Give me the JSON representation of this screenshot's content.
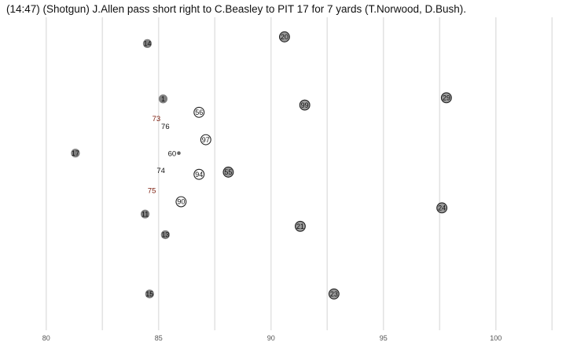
{
  "title": "(14:47) (Shotgun) J.Allen pass short right to C.Beasley to PIT 17 for 7 yards (T.Norwood, D.Bush).",
  "chart_data": {
    "type": "scatter",
    "title": "(14:47) (Shotgun) J.Allen pass short right to C.Beasley to PIT 17 for 7 yards (T.Norwood, D.Bush).",
    "xlabel": "",
    "ylabel": "",
    "xlim": [
      79.1,
      102.7
    ],
    "ylim": [
      -2.6,
      53.4
    ],
    "x_ticks": [
      80,
      85,
      90,
      95,
      100
    ],
    "gridlines_at": [
      80,
      82.5,
      85,
      87.5,
      90,
      92.5,
      95,
      97.5,
      100,
      102.5
    ],
    "legend": "none",
    "colors": {
      "offense_marker": "#808080",
      "defense_marker": "#9a9a9a",
      "defense_stroke": "#222222",
      "lineman_label": "#7a1a0a",
      "ball": "#666666",
      "highlight_marker": "#ffffff"
    },
    "series": [
      {
        "role": "offense",
        "points": [
          {
            "label": "14",
            "x": 84.5,
            "y": 48.7
          },
          {
            "label": "1",
            "x": 85.2,
            "y": 38.8
          },
          {
            "label": "17",
            "x": 81.3,
            "y": 29.1
          },
          {
            "label": "11",
            "x": 84.4,
            "y": 18.2
          },
          {
            "label": "13",
            "x": 85.3,
            "y": 14.5
          },
          {
            "label": "15",
            "x": 84.6,
            "y": 3.9
          }
        ]
      },
      {
        "role": "offensive-line",
        "points": [
          {
            "label": "73",
            "x": 84.9,
            "y": 35.3
          },
          {
            "label": "76",
            "x": 85.3,
            "y": 33.9
          },
          {
            "label": "60",
            "x": 85.6,
            "y": 29.0
          },
          {
            "label": "74",
            "x": 85.1,
            "y": 26.0
          },
          {
            "label": "75",
            "x": 84.7,
            "y": 22.4
          }
        ]
      },
      {
        "role": "defense",
        "points": [
          {
            "label": "20",
            "x": 90.6,
            "y": 49.9
          },
          {
            "label": "29",
            "x": 97.8,
            "y": 39.0
          },
          {
            "label": "99",
            "x": 91.5,
            "y": 37.7
          },
          {
            "label": "55",
            "x": 88.1,
            "y": 25.7
          },
          {
            "label": "24",
            "x": 97.6,
            "y": 19.3
          },
          {
            "label": "21",
            "x": 91.3,
            "y": 16.0
          },
          {
            "label": "23",
            "x": 92.8,
            "y": 3.9
          }
        ]
      },
      {
        "role": "defensive-line",
        "points": [
          {
            "label": "56",
            "x": 86.8,
            "y": 36.4
          },
          {
            "label": "97",
            "x": 87.1,
            "y": 31.5
          },
          {
            "label": "94",
            "x": 86.8,
            "y": 25.3
          },
          {
            "label": "90",
            "x": 86.0,
            "y": 20.4
          }
        ]
      },
      {
        "role": "ball",
        "points": [
          {
            "label": "",
            "x": 85.9,
            "y": 29.1
          }
        ]
      }
    ]
  }
}
